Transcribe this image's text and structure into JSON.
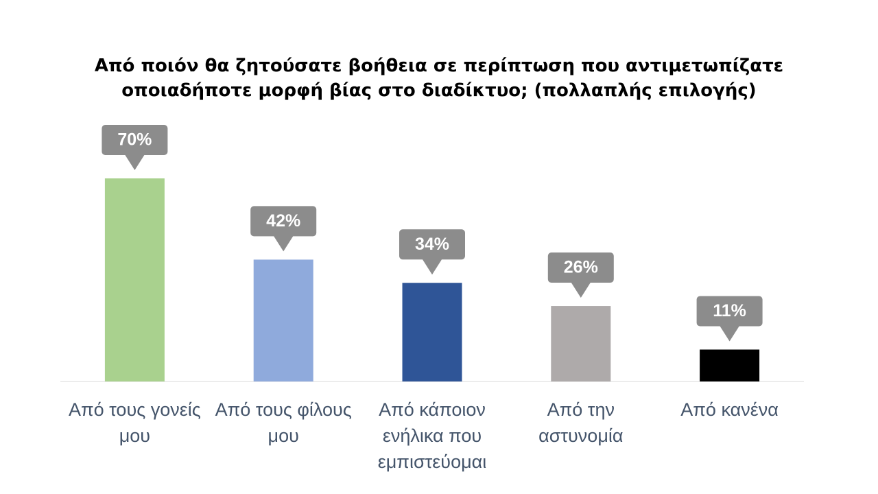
{
  "chart_data": {
    "type": "bar",
    "title": "Από ποιόν θα ζητούσατε βοήθεια σε περίπτωση που αντιμετωπίζατε οποιαδήποτε μορφή βίας στο διαδίκτυο; (πολλαπλής επιλογής)",
    "categories": [
      "Από τους γονείς μου",
      "Από τους φίλους μου",
      "Από κάποιον ενήλικα που εμπιστεύομαι",
      "Από την αστυνομία",
      "Από κανένα"
    ],
    "values": [
      70,
      42,
      34,
      26,
      11
    ],
    "value_labels": [
      "70%",
      "42%",
      "34%",
      "26%",
      "11%"
    ],
    "colors": [
      "#a9d18e",
      "#8faadc",
      "#2f5597",
      "#aeaaaa",
      "#000000"
    ]
  }
}
